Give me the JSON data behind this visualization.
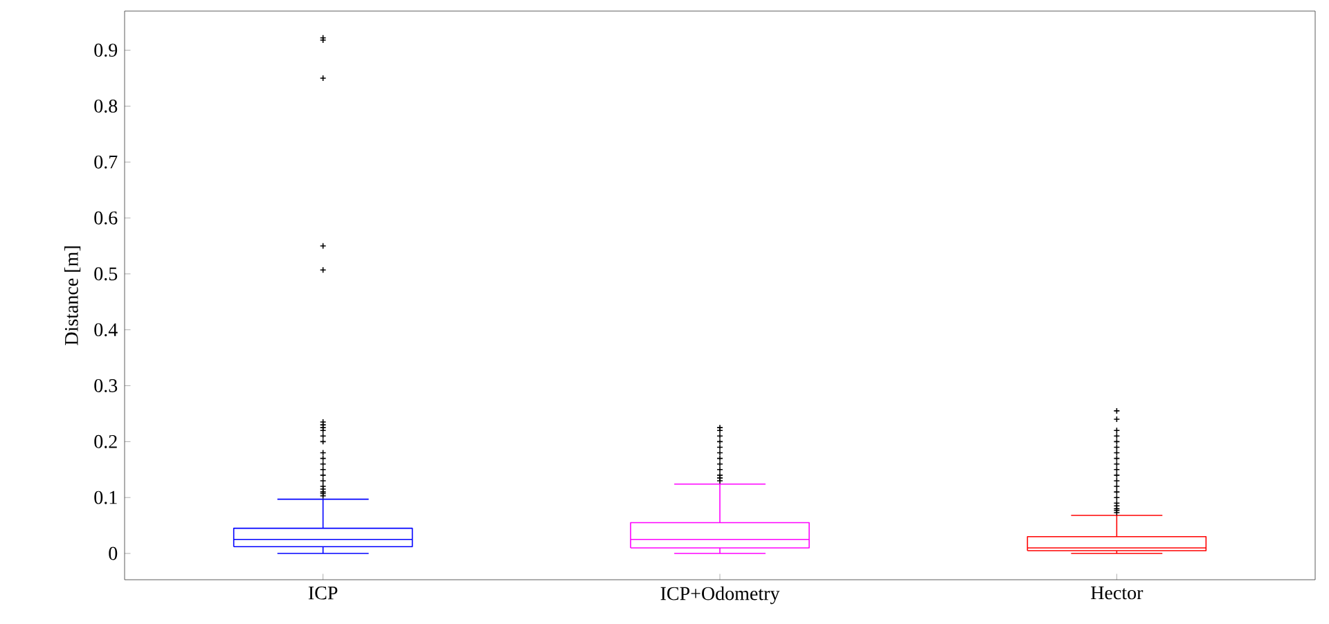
{
  "chart_data": {
    "type": "box",
    "ylabel": "Distance [m]",
    "categories": [
      "ICP",
      "ICP+Odometry",
      "Hector"
    ],
    "colors": [
      "#0000ff",
      "#ff00ff",
      "#ff0000"
    ],
    "boxes": [
      {
        "low": 0,
        "q1": 0.012,
        "median": 0.025,
        "q3": 0.045,
        "high": 0.097,
        "outliers": [
          0.103,
          0.107,
          0.11,
          0.115,
          0.12,
          0.13,
          0.14,
          0.15,
          0.16,
          0.17,
          0.18,
          0.2,
          0.21,
          0.22,
          0.225,
          0.23,
          0.235,
          0.507,
          0.55,
          0.85,
          0.918,
          0.922
        ]
      },
      {
        "low": 0,
        "q1": 0.01,
        "median": 0.025,
        "q3": 0.055,
        "high": 0.124,
        "outliers": [
          0.13,
          0.135,
          0.14,
          0.15,
          0.16,
          0.17,
          0.18,
          0.19,
          0.2,
          0.21,
          0.22,
          0.225
        ]
      },
      {
        "low": 0,
        "q1": 0.005,
        "median": 0.01,
        "q3": 0.03,
        "high": 0.068,
        "outliers": [
          0.073,
          0.077,
          0.08,
          0.085,
          0.09,
          0.1,
          0.11,
          0.12,
          0.13,
          0.14,
          0.15,
          0.16,
          0.17,
          0.18,
          0.19,
          0.2,
          0.21,
          0.22,
          0.24,
          0.255
        ]
      }
    ],
    "ylim": [
      -0.047,
      0.97
    ],
    "yticks": [
      0,
      0.1,
      0.2,
      0.3,
      0.4,
      0.5,
      0.6,
      0.7,
      0.8,
      0.9
    ],
    "grid": false
  }
}
